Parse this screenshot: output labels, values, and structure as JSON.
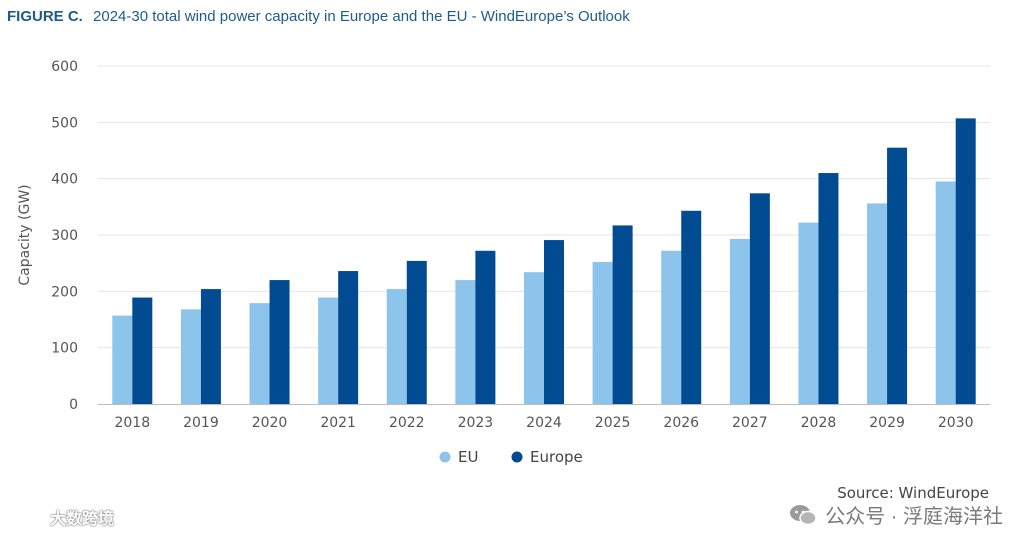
{
  "figure": {
    "label": "FIGURE C.",
    "title": "2024-30 total wind power capacity in Europe and the EU - WindEurope’s Outlook"
  },
  "chart_data": {
    "type": "bar",
    "title": "2024-30 total wind power capacity in Europe and the EU - WindEurope’s Outlook",
    "xlabel": "",
    "ylabel": "Capacity (GW)",
    "ylim": [
      0,
      600
    ],
    "yticks": [
      0,
      100,
      200,
      300,
      400,
      500,
      600
    ],
    "grid": true,
    "legend_position": "bottom-center",
    "categories": [
      "2018",
      "2019",
      "2020",
      "2021",
      "2022",
      "2023",
      "2024",
      "2025",
      "2026",
      "2027",
      "2028",
      "2029",
      "2030"
    ],
    "series": [
      {
        "name": "EU",
        "color": "#8cc4ec",
        "values": [
          157,
          168,
          179,
          189,
          204,
          220,
          234,
          252,
          272,
          293,
          322,
          356,
          395
        ]
      },
      {
        "name": "Europe",
        "color": "#004b91",
        "values": [
          189,
          204,
          220,
          236,
          254,
          272,
          291,
          317,
          343,
          374,
          410,
          455,
          507
        ]
      }
    ]
  },
  "source": "Source: WindEurope",
  "watermarks": {
    "left": "大数跨境",
    "right": "公众号 · 浮庭海洋社",
    "left_icon": "cloud-chat-icon",
    "right_icon": "wechat-icon"
  }
}
